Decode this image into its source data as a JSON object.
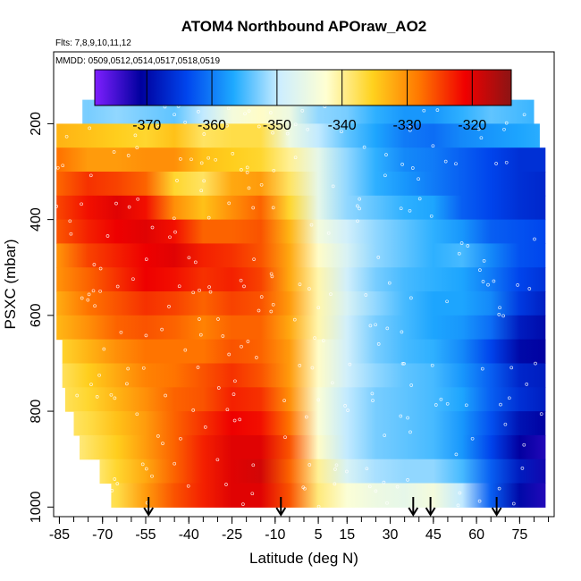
{
  "chart_data": {
    "type": "heatmap",
    "title": "ATOM4 Northbound APOraw_AO2",
    "annotations": [
      "Flts: 7,8,9,10,11,12",
      "MMDD: 0509,0512,0514,0517,0518,0519"
    ],
    "xlabel": "Latitude (deg N)",
    "ylabel": "PSXC (mbar)",
    "xlim": [
      -87,
      87
    ],
    "ylim": [
      1020,
      50
    ],
    "x_ticks": [
      -85,
      -70,
      -55,
      -40,
      -25,
      -10,
      5,
      15,
      30,
      45,
      60,
      75
    ],
    "y_ticks": [
      200,
      400,
      600,
      800,
      1000
    ],
    "colorbar": {
      "range": [
        -378,
        -314
      ],
      "ticks": [
        -370,
        -360,
        -350,
        -340,
        -330,
        -320
      ],
      "colors": [
        "#7f1fff",
        "#00009e",
        "#0046ee",
        "#1eaaff",
        "#cdeeff",
        "#ffffd2",
        "#ffd21e",
        "#ff7800",
        "#f00000",
        "#8c1414"
      ]
    },
    "arrow_latitudes": [
      -54,
      -8,
      38,
      44,
      67
    ],
    "pressure_levels": [
      175,
      225,
      275,
      325,
      375,
      425,
      475,
      525,
      575,
      625,
      675,
      725,
      775,
      825,
      875,
      925,
      975
    ],
    "latitude_bins": [
      -85,
      -75,
      -65,
      -55,
      -45,
      -35,
      -25,
      -15,
      -5,
      5,
      15,
      25,
      35,
      45,
      55,
      65,
      75,
      85
    ],
    "level_extent": [
      [
        -77,
        80
      ],
      [
        -86,
        82
      ],
      [
        -86,
        84
      ],
      [
        -86,
        84
      ],
      [
        -86,
        84
      ],
      [
        -86,
        84
      ],
      [
        -86,
        84
      ],
      [
        -86,
        84
      ],
      [
        -86,
        84
      ],
      [
        -86,
        84
      ],
      [
        -84,
        84
      ],
      [
        -84,
        84
      ],
      [
        -83,
        84
      ],
      [
        -80,
        84
      ],
      [
        -78,
        84
      ],
      [
        -71,
        84
      ],
      [
        -67,
        84
      ]
    ],
    "values": [
      [
        -352,
        -353,
        -352,
        -353,
        -354,
        -350,
        -344,
        -342,
        -345,
        -352,
        -353,
        -356,
        -358,
        -358,
        -356,
        -354,
        -355,
        -356
      ],
      [
        -333,
        -334,
        -335,
        -336,
        -334,
        -338,
        -337,
        -337,
        -345,
        -350,
        -354,
        -357,
        -360,
        -361,
        -359,
        -358,
        -357,
        -356
      ],
      [
        -328,
        -331,
        -331,
        -330,
        -330,
        -334,
        -335,
        -336,
        -340,
        -346,
        -352,
        -356,
        -359,
        -360,
        -362,
        -364,
        -366,
        -366
      ],
      [
        -327,
        -324,
        -325,
        -327,
        -336,
        -338,
        -332,
        -331,
        -338,
        -346,
        -352,
        -356,
        -358,
        -360,
        -362,
        -364,
        -366,
        -367
      ],
      [
        -325,
        -322,
        -320,
        -322,
        -330,
        -334,
        -330,
        -327,
        -336,
        -346,
        -352,
        -354,
        -356,
        -357,
        -362,
        -364,
        -366,
        -367
      ],
      [
        -326,
        -323,
        -321,
        -320,
        -322,
        -327,
        -327,
        -326,
        -333,
        -344,
        -349,
        -352,
        -354,
        -356,
        -358,
        -362,
        -363,
        -364
      ],
      [
        -330,
        -325,
        -323,
        -321,
        -320,
        -323,
        -324,
        -326,
        -332,
        -342,
        -348,
        -352,
        -354,
        -356,
        -355,
        -359,
        -363,
        -364
      ],
      [
        -330,
        -327,
        -324,
        -321,
        -322,
        -324,
        -323,
        -325,
        -332,
        -341,
        -349,
        -353,
        -355,
        -356,
        -357,
        -360,
        -364,
        -366
      ],
      [
        -332,
        -328,
        -326,
        -324,
        -325,
        -327,
        -325,
        -326,
        -331,
        -341,
        -348,
        -352,
        -355,
        -357,
        -357,
        -359,
        -365,
        -368
      ],
      [
        -333,
        -330,
        -327,
        -326,
        -327,
        -329,
        -327,
        -327,
        -332,
        -341,
        -349,
        -353,
        -355,
        -357,
        -358,
        -361,
        -368,
        -370
      ],
      [
        -336,
        -333,
        -330,
        -328,
        -328,
        -328,
        -326,
        -327,
        -331,
        -342,
        -349,
        -353,
        -355,
        -356,
        -359,
        -364,
        -370,
        -371
      ],
      [
        -338,
        -335,
        -332,
        -329,
        -328,
        -326,
        -324,
        -326,
        -331,
        -342,
        -349,
        -352,
        -354,
        -355,
        -358,
        -362,
        -367,
        -368
      ],
      [
        -338,
        -336,
        -333,
        -330,
        -327,
        -326,
        -323,
        -324,
        -330,
        -343,
        -350,
        -353,
        -354,
        -355,
        -357,
        -362,
        -366,
        -368
      ],
      [
        -339,
        -337,
        -334,
        -331,
        -327,
        -324,
        -321,
        -322,
        -328,
        -343,
        -350,
        -353,
        -354,
        -355,
        -358,
        -363,
        -369,
        -371
      ],
      [
        -341,
        -338,
        -335,
        -331,
        -327,
        -323,
        -320,
        -320,
        -326,
        -342,
        -350,
        -353,
        -354,
        -355,
        -358,
        -364,
        -371,
        -373
      ],
      [
        -341,
        -340,
        -336,
        -332,
        -327,
        -323,
        -320,
        -319,
        -327,
        -340,
        -348,
        -351,
        -352,
        -352,
        -355,
        -362,
        -368,
        -372
      ],
      [
        -341,
        -340,
        -337,
        -331,
        -326,
        -323,
        -320,
        -320,
        -326,
        -339,
        -343,
        -345,
        -346,
        -344,
        -350,
        -362,
        -370,
        -373
      ]
    ]
  }
}
